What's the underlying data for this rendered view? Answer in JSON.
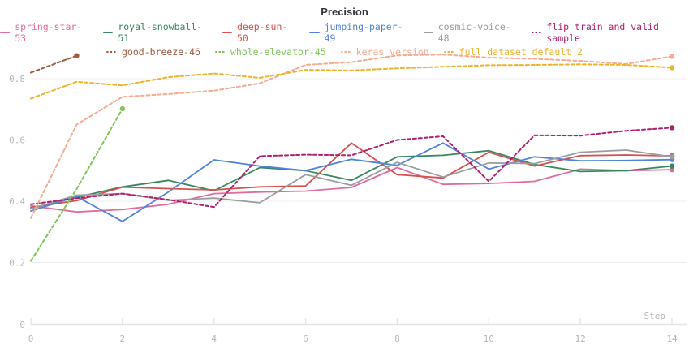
{
  "chart_data": {
    "type": "line",
    "title": "Precision",
    "xlabel": "Step",
    "x_ticks": [
      0,
      2,
      4,
      6,
      8,
      10,
      12,
      14
    ],
    "y_ticks": [
      0,
      0.2,
      0.4,
      0.6,
      0.8
    ],
    "y_tick_labels": [
      "0",
      "0.2",
      "0.4",
      "0.6",
      "0.8"
    ],
    "xlim": [
      0,
      14.4
    ],
    "ylim": [
      0,
      0.9
    ],
    "grid": "horizontal-only",
    "legend_position": "top",
    "legend_rows": [
      [
        "spring-star-53",
        "royal-snowball-51",
        "deep-sun-50",
        "jumping-paper-49",
        "cosmic-voice-48",
        "flip train and valid sample"
      ],
      [
        "good-breeze-46",
        "whole-elevator-45",
        "keras version",
        "full dataset default 2"
      ]
    ],
    "series": [
      {
        "name": "spring-star-53",
        "color": "#e06c9f",
        "style": "solid",
        "x": [
          0,
          1,
          2,
          3,
          4,
          5,
          6,
          7,
          8,
          9,
          10,
          11,
          12,
          13,
          14
        ],
        "values": [
          0.385,
          0.365,
          0.373,
          0.39,
          0.425,
          0.43,
          0.433,
          0.445,
          0.51,
          0.455,
          0.458,
          0.465,
          0.505,
          0.5,
          0.503
        ]
      },
      {
        "name": "royal-snowball-51",
        "color": "#38875f",
        "style": "solid",
        "x": [
          0,
          1,
          2,
          3,
          4,
          5,
          6,
          7,
          8,
          9,
          10,
          11,
          12,
          13,
          14
        ],
        "values": [
          0.377,
          0.413,
          0.447,
          0.468,
          0.434,
          0.51,
          0.5,
          0.468,
          0.545,
          0.55,
          0.565,
          0.52,
          0.497,
          0.5,
          0.515
        ]
      },
      {
        "name": "deep-sun-50",
        "color": "#d6504c",
        "style": "solid",
        "x": [
          0,
          1,
          2,
          3,
          4,
          5,
          6,
          7,
          8,
          9,
          10,
          11,
          12,
          13,
          14
        ],
        "values": [
          0.38,
          0.402,
          0.446,
          0.441,
          0.437,
          0.447,
          0.45,
          0.59,
          0.487,
          0.476,
          0.56,
          0.515,
          0.549,
          0.551,
          0.548
        ]
      },
      {
        "name": "jumping-paper-49",
        "color": "#5183db",
        "style": "solid",
        "x": [
          0,
          1,
          2,
          3,
          4,
          5,
          6,
          7,
          8,
          9,
          10,
          11,
          12,
          13,
          14
        ],
        "values": [
          0.368,
          0.415,
          0.334,
          0.43,
          0.535,
          0.515,
          0.5,
          0.537,
          0.517,
          0.59,
          0.505,
          0.545,
          0.532,
          0.533,
          0.536
        ]
      },
      {
        "name": "cosmic-voice-48",
        "color": "#9b9da1",
        "style": "solid",
        "x": [
          0,
          1,
          2,
          3,
          4,
          5,
          6,
          7,
          8,
          9,
          10,
          11,
          12,
          13,
          14
        ],
        "values": [
          0.375,
          0.42,
          0.425,
          0.403,
          0.41,
          0.395,
          0.487,
          0.452,
          0.527,
          0.479,
          0.525,
          0.523,
          0.56,
          0.567,
          0.545
        ]
      },
      {
        "name": "flip train and valid sample",
        "color": "#b01f6e",
        "style": "dashed",
        "x": [
          0,
          1,
          2,
          3,
          4,
          5,
          6,
          7,
          8,
          9,
          10,
          11,
          12,
          13,
          14
        ],
        "values": [
          0.39,
          0.41,
          0.425,
          0.405,
          0.381,
          0.547,
          0.552,
          0.55,
          0.6,
          0.612,
          0.465,
          0.615,
          0.614,
          0.63,
          0.64
        ]
      },
      {
        "name": "good-breeze-46",
        "color": "#9e5b40",
        "style": "dashed",
        "x": [
          0,
          1
        ],
        "values": [
          0.82,
          0.875
        ]
      },
      {
        "name": "whole-elevator-45",
        "color": "#83c35d",
        "style": "dashed",
        "x": [
          0,
          1,
          2
        ],
        "values": [
          0.205,
          0.44,
          0.702
        ]
      },
      {
        "name": "keras version",
        "color": "#f3ac92",
        "style": "dashed",
        "x": [
          0,
          1,
          2,
          3,
          4,
          5,
          6,
          7,
          8,
          9,
          10,
          11,
          12,
          13,
          14
        ],
        "values": [
          0.345,
          0.65,
          0.741,
          0.75,
          0.761,
          0.785,
          0.845,
          0.854,
          0.876,
          0.879,
          0.869,
          0.865,
          0.858,
          0.848,
          0.873
        ]
      },
      {
        "name": "full dataset default 2",
        "color": "#efb22b",
        "style": "dashed",
        "x": [
          0,
          1,
          2,
          3,
          4,
          5,
          6,
          7,
          8,
          9,
          10,
          11,
          12,
          13,
          14
        ],
        "values": [
          0.735,
          0.79,
          0.778,
          0.805,
          0.817,
          0.803,
          0.829,
          0.827,
          0.834,
          0.839,
          0.844,
          0.845,
          0.847,
          0.845,
          0.836
        ]
      }
    ],
    "ui_colors": {
      "grid": "#ededef",
      "axis": "#e2e4e7",
      "tick_label": "#b3b9bf",
      "title": "#33373d",
      "background": "#ffffff"
    }
  }
}
